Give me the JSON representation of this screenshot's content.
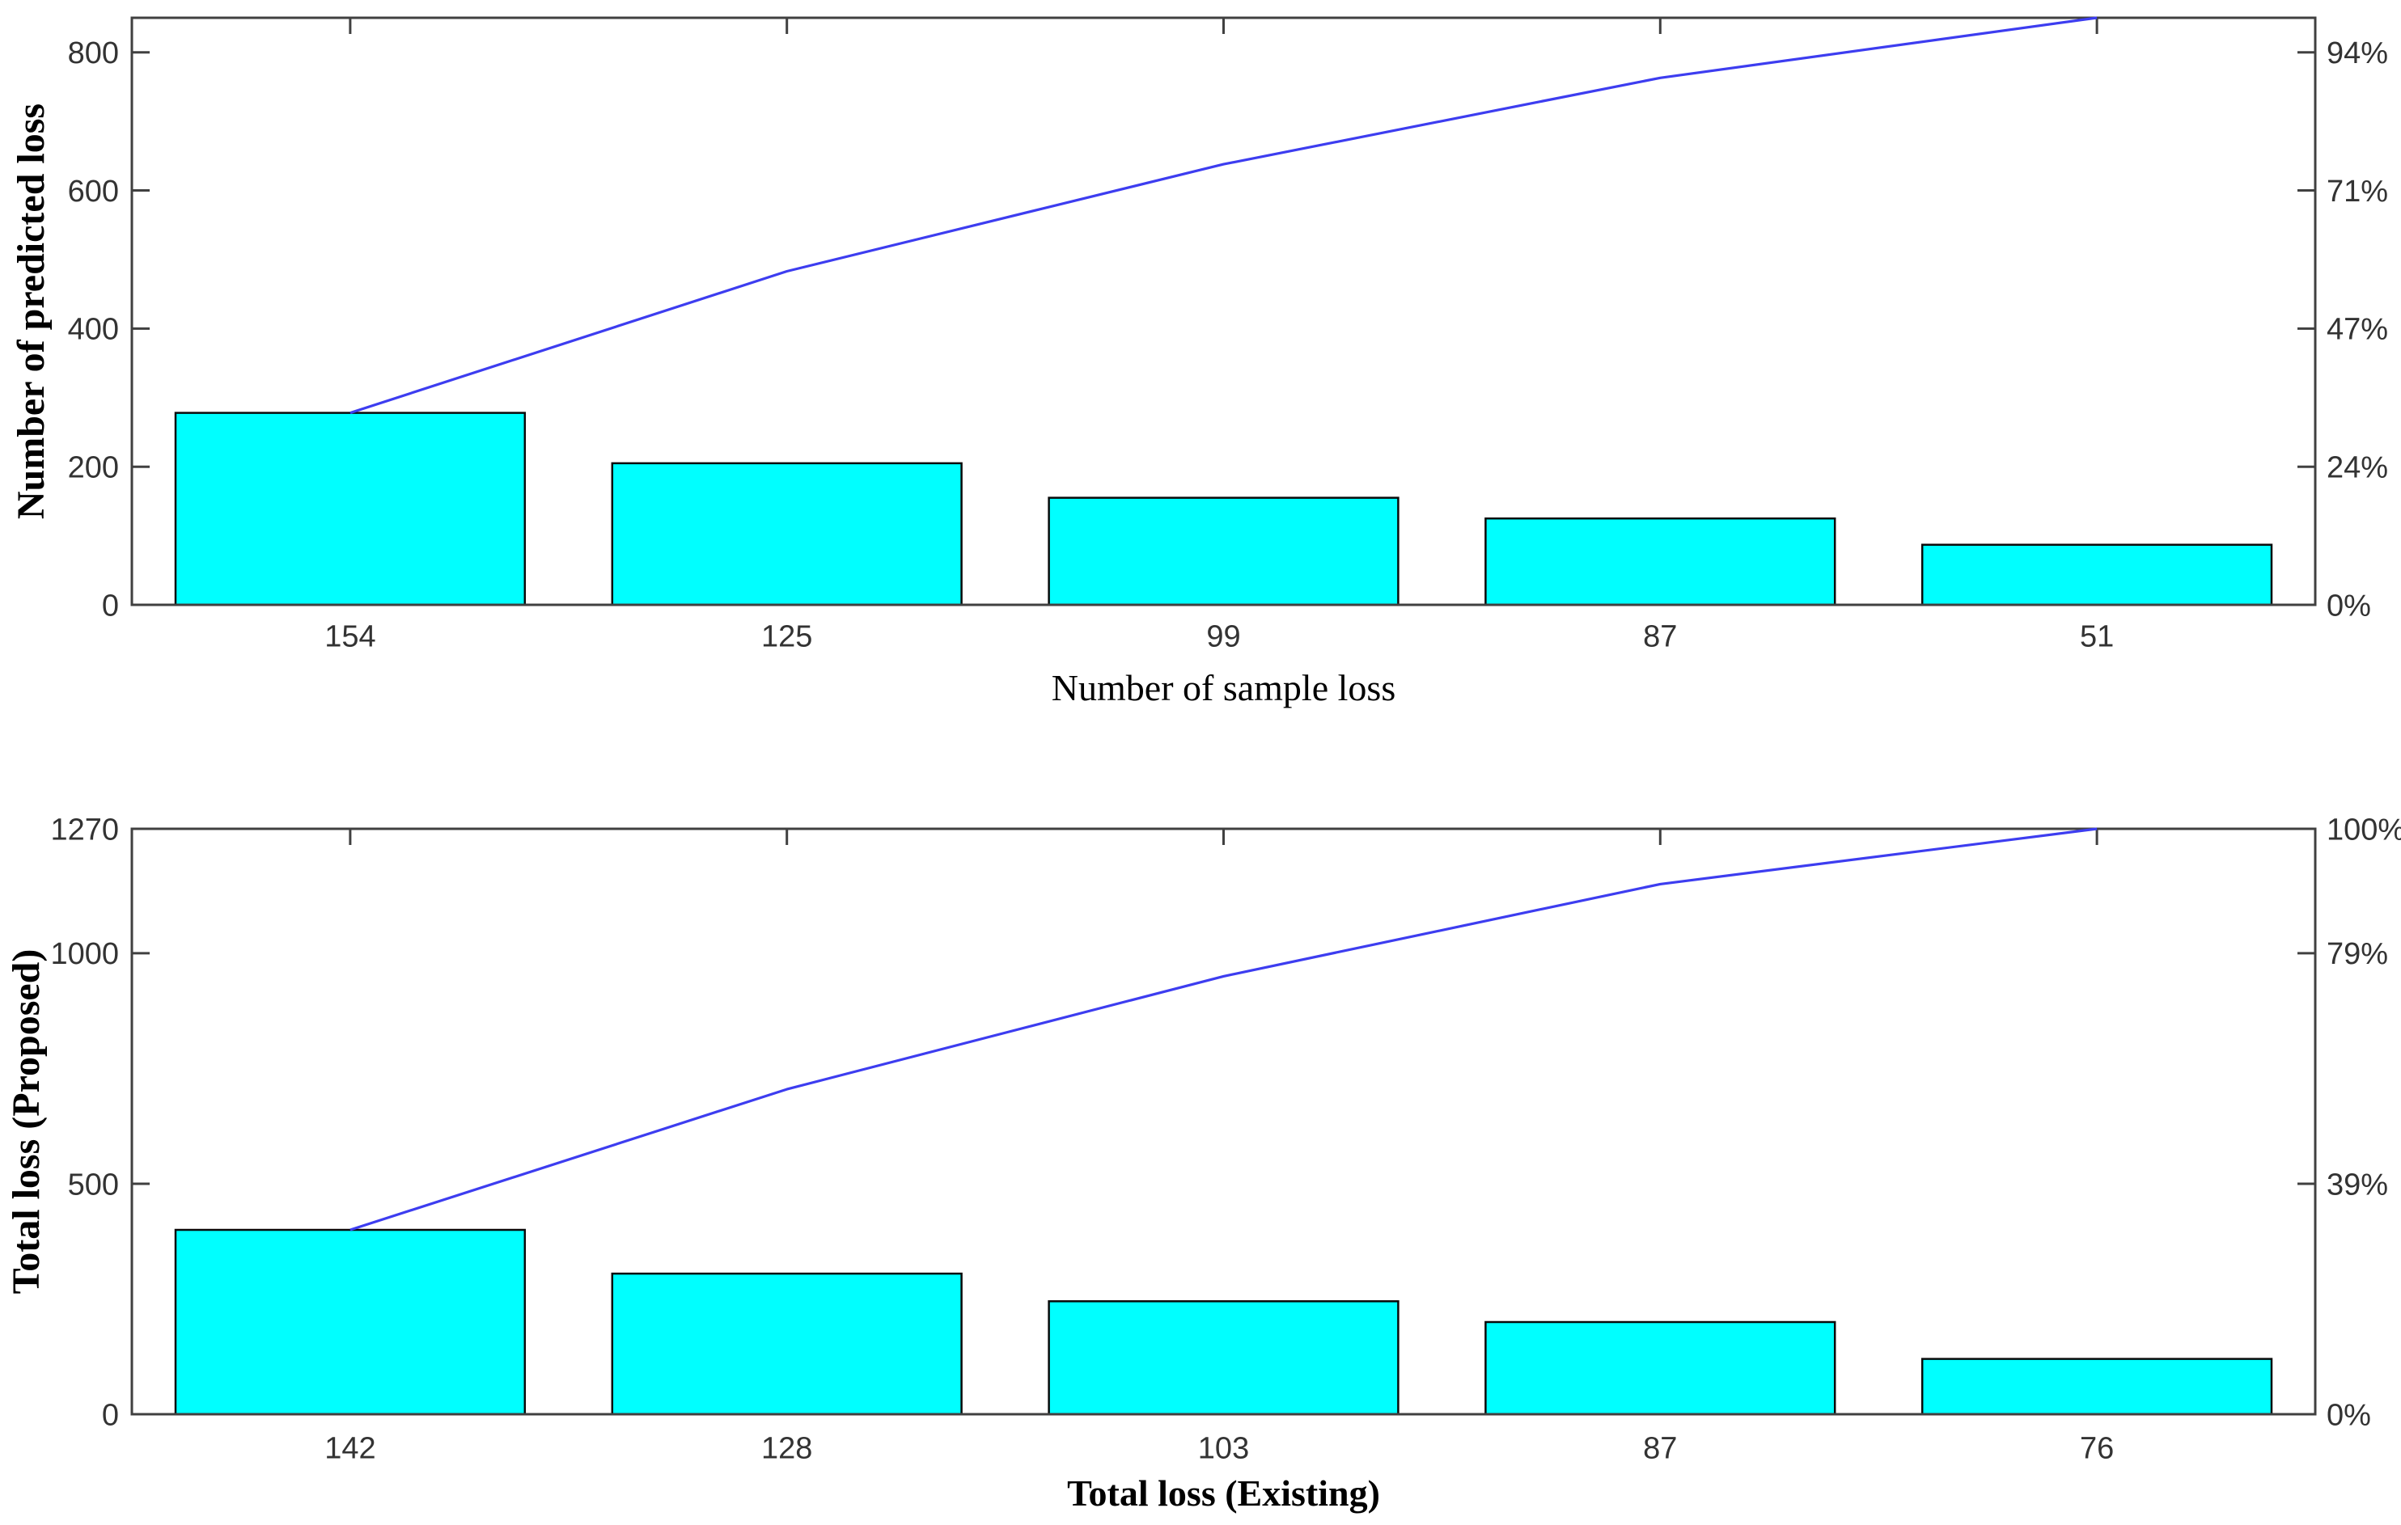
{
  "figure": {
    "background": "#ffffff",
    "title": ""
  },
  "colors": {
    "bar_fill": "#00ffff",
    "bar_edge": "#0a0a0a",
    "cumulative_line": "#3d3df0",
    "axis_frame": "#404040",
    "tick_label": "#333333",
    "title_text": "#000000"
  },
  "chart_data": [
    {
      "type": "pareto (bar + cumulative line)",
      "title": "",
      "xlabel": "Number of sample loss",
      "ylabel": "Number of predicted loss",
      "categories": [
        "154",
        "125",
        "99",
        "87",
        "51"
      ],
      "values": [
        278,
        205,
        155,
        125,
        87
      ],
      "cumulative": [
        278,
        483,
        638,
        763,
        850
      ],
      "cumulative_pct": [
        "32.7%",
        "56.8%",
        "75.1%",
        "89.8%",
        "100%"
      ],
      "total": 850,
      "ylim": [
        0,
        850
      ],
      "yticks": [
        0,
        200,
        400,
        600,
        800
      ],
      "ytick_labels": [
        "0",
        "200",
        "400",
        "600",
        "800"
      ],
      "right_axis": {
        "labels": [
          "0%",
          "24%",
          "47%",
          "71%",
          "94%"
        ],
        "at_values": [
          0,
          200,
          400,
          600,
          800
        ],
        "range": [
          "0%",
          "100%"
        ]
      },
      "bar_width_fraction": 0.8,
      "grid": false,
      "legend": null
    },
    {
      "type": "pareto (bar + cumulative line)",
      "title": "",
      "xlabel": "Total loss (Existing)",
      "ylabel": "Total loss (Proposed)",
      "categories": [
        "142",
        "128",
        "103",
        "87",
        "76"
      ],
      "values": [
        400,
        305,
        245,
        200,
        120
      ],
      "cumulative": [
        400,
        705,
        950,
        1150,
        1270
      ],
      "cumulative_pct": [
        "31.5%",
        "55.5%",
        "74.8%",
        "90.6%",
        "100%"
      ],
      "total": 1270,
      "ylim": [
        0,
        1270
      ],
      "yticks": [
        0,
        500,
        1000,
        1270
      ],
      "ytick_labels": [
        "0",
        "500",
        "1000",
        "1270"
      ],
      "right_axis": {
        "labels": [
          "0%",
          "39%",
          "79%",
          "100%"
        ],
        "at_values": [
          0,
          500,
          1000,
          1270
        ],
        "range": [
          "0%",
          "100%"
        ]
      },
      "bar_width_fraction": 0.8,
      "grid": false,
      "legend": null
    }
  ]
}
